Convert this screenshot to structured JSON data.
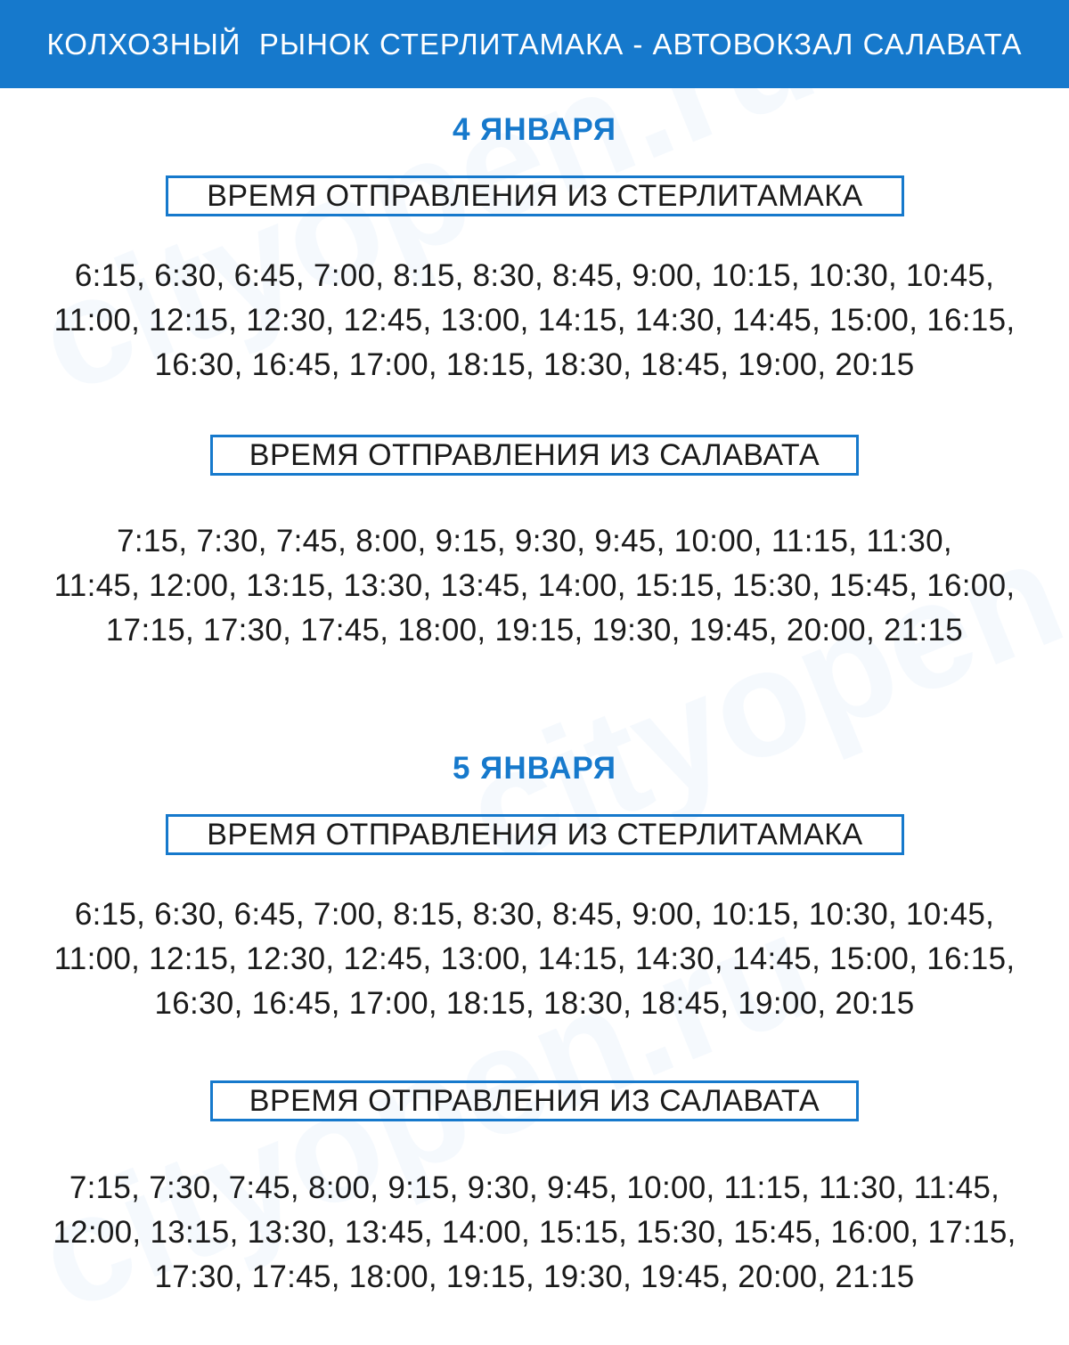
{
  "header": {
    "title": "КОЛХОЗНЫЙ  РЫНОК СТЕРЛИТАМАКА - АВТОВОКЗАЛ САЛАВАТА"
  },
  "watermark": "cityopen.ru",
  "colors": {
    "accent": "#1679cc",
    "text": "#1a1a1a"
  },
  "days": [
    {
      "title": "4 ЯНВАРЯ",
      "from_sterlitamak": {
        "label": "ВРЕМЯ ОТПРАВЛЕНИЯ ИЗ СТЕРЛИТАМАКА",
        "lines": [
          "6:15, 6:30, 6:45, 7:00, 8:15, 8:30, 8:45, 9:00, 10:15, 10:30, 10:45,",
          "11:00, 12:15, 12:30, 12:45, 13:00, 14:15, 14:30, 14:45, 15:00, 16:15,",
          "16:30, 16:45, 17:00, 18:15, 18:30, 18:45, 19:00, 20:15"
        ]
      },
      "from_salavat": {
        "label": "ВРЕМЯ ОТПРАВЛЕНИЯ ИЗ САЛАВАТА",
        "lines": [
          "7:15, 7:30, 7:45, 8:00, 9:15, 9:30, 9:45, 10:00, 11:15, 11:30,",
          "11:45, 12:00, 13:15, 13:30, 13:45, 14:00, 15:15, 15:30, 15:45, 16:00,",
          "17:15, 17:30, 17:45, 18:00, 19:15, 19:30, 19:45, 20:00, 21:15"
        ]
      }
    },
    {
      "title": "5 ЯНВАРЯ",
      "from_sterlitamak": {
        "label": "ВРЕМЯ ОТПРАВЛЕНИЯ ИЗ СТЕРЛИТАМАКА",
        "lines": [
          "6:15, 6:30, 6:45, 7:00, 8:15, 8:30, 8:45, 9:00, 10:15, 10:30, 10:45,",
          "11:00, 12:15, 12:30, 12:45, 13:00, 14:15, 14:30, 14:45, 15:00, 16:15,",
          "16:30, 16:45, 17:00, 18:15, 18:30, 18:45, 19:00, 20:15"
        ]
      },
      "from_salavat": {
        "label": "ВРЕМЯ ОТПРАВЛЕНИЯ ИЗ САЛАВАТА",
        "lines": [
          "7:15, 7:30, 7:45, 8:00, 9:15, 9:30, 9:45, 10:00, 11:15, 11:30, 11:45,",
          "12:00, 13:15, 13:30, 13:45, 14:00, 15:15, 15:30, 15:45, 16:00, 17:15,",
          "17:30, 17:45, 18:00, 19:15, 19:30, 19:45, 20:00, 21:15"
        ]
      }
    }
  ]
}
